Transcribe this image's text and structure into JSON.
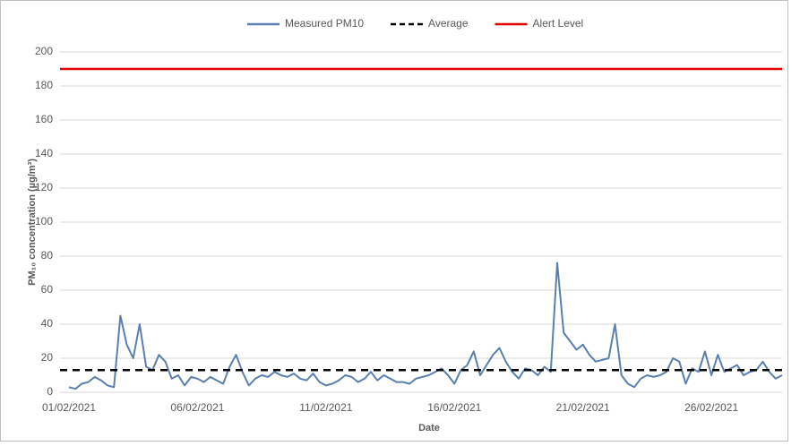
{
  "chart_data": {
    "type": "line",
    "y_label": "PM₁₀ concentration (µg/m³)",
    "x_label": "Date",
    "categories": [
      "01/02/2021",
      null,
      null,
      null,
      null,
      null,
      null,
      null,
      null,
      null,
      null,
      null,
      null,
      null,
      null,
      null,
      null,
      null,
      null,
      null,
      "06/02/2021",
      null,
      null,
      null,
      null,
      null,
      null,
      null,
      null,
      null,
      null,
      null,
      null,
      null,
      null,
      null,
      null,
      null,
      null,
      null,
      "11/02/2021",
      null,
      null,
      null,
      null,
      null,
      null,
      null,
      null,
      null,
      null,
      null,
      null,
      null,
      null,
      null,
      null,
      null,
      null,
      null,
      "16/02/2021",
      null,
      null,
      null,
      null,
      null,
      null,
      null,
      null,
      null,
      null,
      null,
      null,
      null,
      null,
      null,
      null,
      null,
      null,
      null,
      "21/02/2021",
      null,
      null,
      null,
      null,
      null,
      null,
      null,
      null,
      null,
      null,
      null,
      null,
      null,
      null,
      null,
      null,
      null,
      null,
      null,
      "26/02/2021",
      null,
      null,
      null,
      null,
      null,
      null,
      null,
      null,
      null,
      null,
      null
    ],
    "series": [
      {
        "name": "Measured PM10",
        "color": "#5b7fae",
        "values": [
          3,
          2,
          5,
          6,
          9,
          7,
          4,
          3,
          45,
          28,
          20,
          40,
          15,
          13,
          22,
          18,
          8,
          10,
          4,
          9,
          8,
          6,
          9,
          7,
          5,
          15,
          22,
          12,
          4,
          8,
          10,
          9,
          12,
          10,
          9,
          11,
          8,
          7,
          11,
          6,
          4,
          5,
          7,
          10,
          9,
          6,
          8,
          12,
          7,
          10,
          8,
          6,
          6,
          5,
          8,
          9,
          10,
          12,
          14,
          10,
          5,
          13,
          16,
          24,
          10,
          16,
          22,
          26,
          18,
          12,
          8,
          14,
          13,
          10,
          15,
          12,
          76,
          35,
          30,
          25,
          28,
          22,
          18,
          19,
          20,
          40,
          10,
          5,
          3,
          8,
          10,
          9,
          10,
          12,
          20,
          18,
          5,
          14,
          12,
          24,
          10,
          22,
          12,
          14,
          16,
          10,
          12,
          13,
          18,
          12,
          8,
          10
        ]
      }
    ],
    "reference_lines": [
      {
        "name": "Average",
        "value": 13,
        "color": "#000000",
        "dashed": true
      },
      {
        "name": "Alert Level",
        "value": 190,
        "color": "#e00000",
        "dashed": false
      }
    ],
    "ylim": [
      0,
      200
    ],
    "yticks": [
      0,
      20,
      40,
      60,
      80,
      100,
      120,
      140,
      160,
      180,
      200
    ],
    "grid": true,
    "legend": "top"
  }
}
